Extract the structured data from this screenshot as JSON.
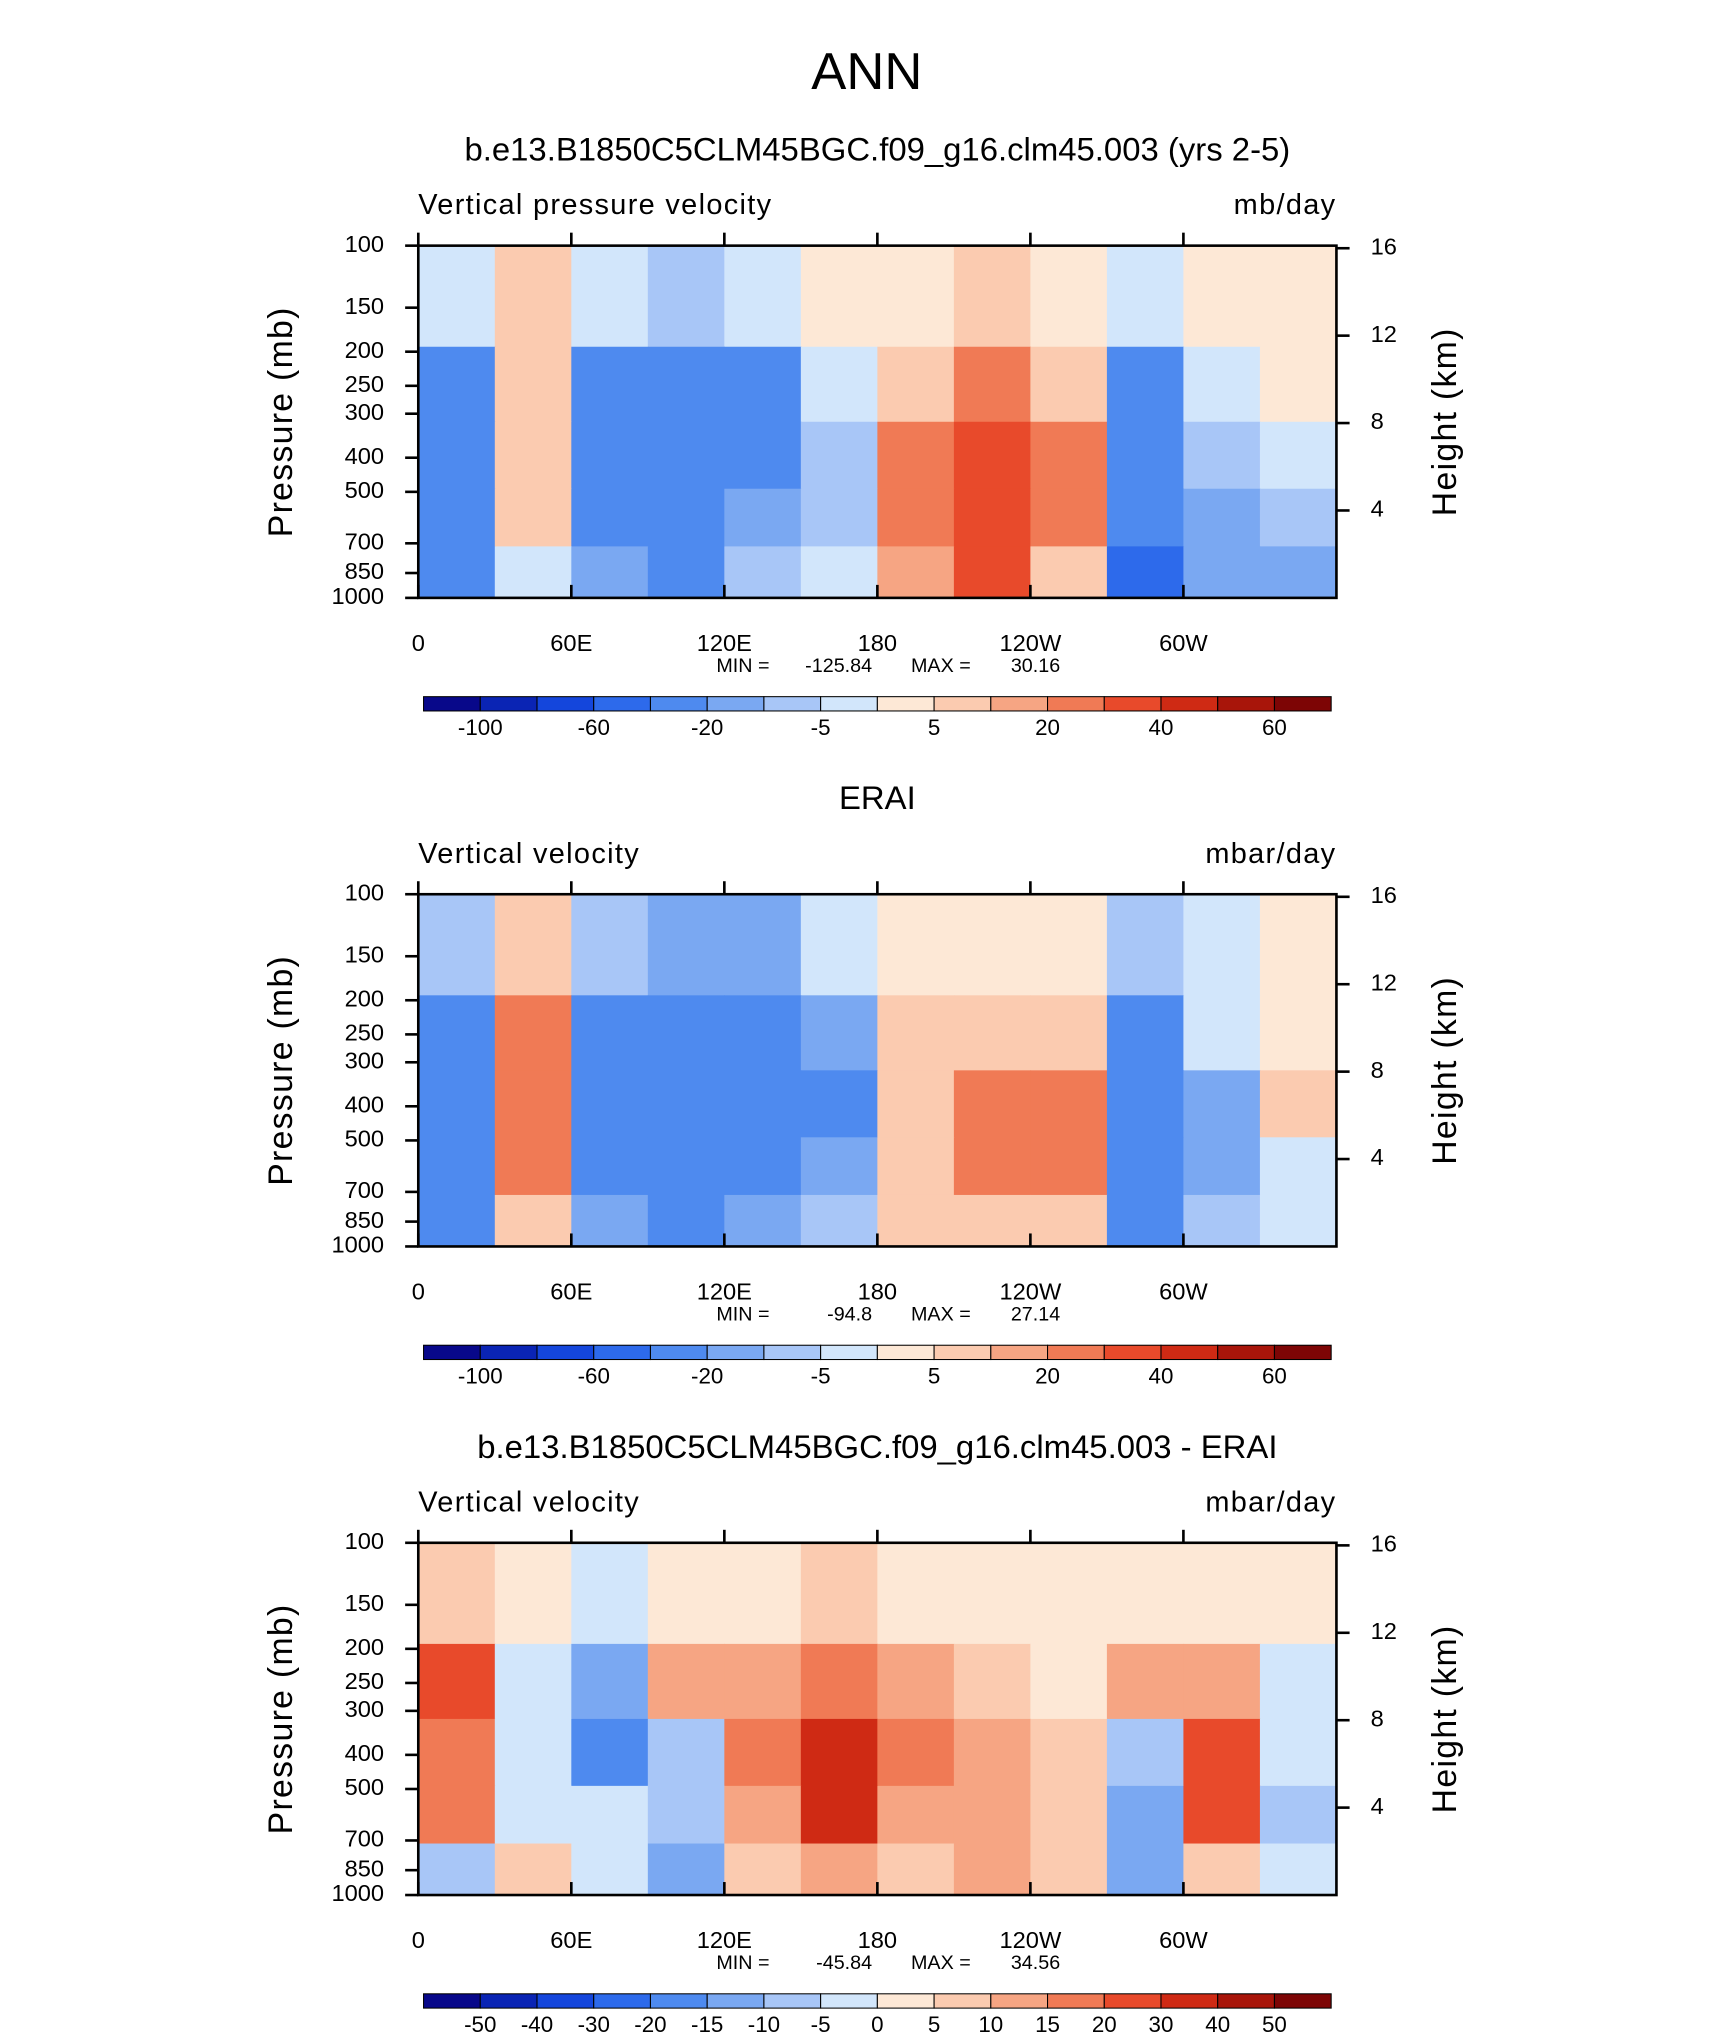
{
  "title": "ANN",
  "chart_data": [
    {
      "type": "contour",
      "title": "b.e13.B1850C5CLM45BGC.f09_g16.clm45.003 (yrs 2-5)",
      "left_label": "Vertical pressure velocity",
      "right_label": "mb/day",
      "ylabel": "Pressure (mb)",
      "y2label": "Height (km)",
      "x": [
        15,
        45,
        75,
        105,
        135,
        165,
        195,
        225,
        255,
        285,
        315,
        345
      ],
      "pressure": [
        150,
        250,
        400,
        600,
        850
      ],
      "values": [
        [
          -5,
          5,
          -5,
          -10,
          -5,
          0,
          3,
          5,
          3,
          -5,
          3,
          3
        ],
        [
          -30,
          10,
          -30,
          -40,
          -30,
          -5,
          10,
          20,
          10,
          -40,
          -5,
          3
        ],
        [
          -40,
          10,
          -40,
          -40,
          -30,
          -10,
          20,
          30,
          20,
          -40,
          -10,
          -5
        ],
        [
          -40,
          5,
          -40,
          -40,
          -20,
          -10,
          20,
          30,
          20,
          -40,
          -15,
          -10
        ],
        [
          -40,
          -5,
          -20,
          -30,
          -10,
          -5,
          15,
          30,
          10,
          -60,
          -20,
          -20
        ]
      ],
      "xlim": [
        0,
        360
      ],
      "xticks": [
        0,
        {
          "value": 60,
          "label": "60E"
        },
        {
          "value": 120,
          "label": "120E"
        },
        180,
        {
          "value": 240,
          "label": "120W"
        },
        {
          "value": 300,
          "label": "60W"
        }
      ],
      "ylim": [
        1000,
        100
      ],
      "yticks": [
        100,
        150,
        200,
        250,
        300,
        400,
        500,
        700,
        850,
        1000
      ],
      "y2ticks": [
        4,
        8,
        12,
        16
      ],
      "min_label": "MIN =",
      "min": -125.84,
      "max_label": "MAX =",
      "max": 30.16,
      "colorbar": {
        "colors": [
          "#08088a",
          "#0a24b4",
          "#1446dc",
          "#2d6aeb",
          "#4e8aef",
          "#7aa8f2",
          "#a8c6f7",
          "#d2e6fb",
          "#fde8d6",
          "#fbcbb0",
          "#f6a583",
          "#f07a55",
          "#e84a2b",
          "#cf2a14",
          "#a8150a",
          "#7d0505"
        ],
        "labels": [
          -100,
          -60,
          -20,
          -5,
          5,
          20,
          40,
          60
        ]
      }
    },
    {
      "type": "contour",
      "title": "ERAI",
      "left_label": "Vertical velocity",
      "right_label": "mbar/day",
      "ylabel": "Pressure (mb)",
      "y2label": "Height (km)",
      "x": [
        15,
        45,
        75,
        105,
        135,
        165,
        195,
        225,
        255,
        285,
        315,
        345
      ],
      "pressure": [
        150,
        250,
        400,
        600,
        850
      ],
      "values": [
        [
          -10,
          5,
          -10,
          -20,
          -20,
          -5,
          3,
          3,
          3,
          -10,
          -3,
          3
        ],
        [
          -40,
          20,
          -30,
          -40,
          -40,
          -20,
          5,
          10,
          10,
          -40,
          -5,
          3
        ],
        [
          -40,
          20,
          -40,
          -40,
          -40,
          -30,
          10,
          20,
          20,
          -40,
          -20,
          10
        ],
        [
          -40,
          20,
          -40,
          -40,
          -40,
          -20,
          10,
          20,
          20,
          -40,
          -20,
          -5
        ],
        [
          -30,
          10,
          -20,
          -30,
          -20,
          -10,
          5,
          10,
          10,
          -40,
          -10,
          -5
        ]
      ],
      "xlim": [
        0,
        360
      ],
      "xticks": [
        0,
        {
          "value": 60,
          "label": "60E"
        },
        {
          "value": 120,
          "label": "120E"
        },
        180,
        {
          "value": 240,
          "label": "120W"
        },
        {
          "value": 300,
          "label": "60W"
        }
      ],
      "ylim": [
        1000,
        100
      ],
      "yticks": [
        100,
        150,
        200,
        250,
        300,
        400,
        500,
        700,
        850,
        1000
      ],
      "y2ticks": [
        4,
        8,
        12,
        16
      ],
      "min_label": "MIN =",
      "min": -94.8,
      "max_label": "MAX =",
      "max": 27.14,
      "colorbar": {
        "colors": [
          "#08088a",
          "#0a24b4",
          "#1446dc",
          "#2d6aeb",
          "#4e8aef",
          "#7aa8f2",
          "#a8c6f7",
          "#d2e6fb",
          "#fde8d6",
          "#fbcbb0",
          "#f6a583",
          "#f07a55",
          "#e84a2b",
          "#cf2a14",
          "#a8150a",
          "#7d0505"
        ],
        "labels": [
          -100,
          -60,
          -20,
          -5,
          5,
          20,
          40,
          60
        ]
      }
    },
    {
      "type": "contour",
      "title": "b.e13.B1850C5CLM45BGC.f09_g16.clm45.003 - ERAI",
      "left_label": "Vertical velocity",
      "right_label": "mbar/day",
      "ylabel": "Pressure (mb)",
      "y2label": "Height (km)",
      "x": [
        15,
        45,
        75,
        105,
        135,
        165,
        195,
        225,
        255,
        285,
        315,
        345
      ],
      "pressure": [
        150,
        250,
        400,
        600,
        850
      ],
      "values": [
        [
          5,
          0,
          -5,
          0,
          3,
          5,
          3,
          0,
          0,
          3,
          3,
          0
        ],
        [
          20,
          -5,
          -15,
          10,
          10,
          15,
          10,
          5,
          3,
          10,
          10,
          -3
        ],
        [
          15,
          -3,
          -20,
          -10,
          15,
          30,
          15,
          10,
          5,
          -10,
          20,
          -5
        ],
        [
          15,
          -5,
          -5,
          -10,
          10,
          30,
          10,
          10,
          5,
          -15,
          20,
          -10
        ],
        [
          -10,
          5,
          -5,
          -15,
          5,
          10,
          5,
          10,
          5,
          -15,
          5,
          -5
        ]
      ],
      "xlim": [
        0,
        360
      ],
      "xticks": [
        0,
        {
          "value": 60,
          "label": "60E"
        },
        {
          "value": 120,
          "label": "120E"
        },
        180,
        {
          "value": 240,
          "label": "120W"
        },
        {
          "value": 300,
          "label": "60W"
        }
      ],
      "ylim": [
        1000,
        100
      ],
      "yticks": [
        100,
        150,
        200,
        250,
        300,
        400,
        500,
        700,
        850,
        1000
      ],
      "y2ticks": [
        4,
        8,
        12,
        16
      ],
      "min_label": "MIN =",
      "min": -45.84,
      "max_label": "MAX =",
      "max": 34.56,
      "colorbar": {
        "colors": [
          "#08088a",
          "#0a24b4",
          "#1446dc",
          "#2d6aeb",
          "#4e8aef",
          "#7aa8f2",
          "#a8c6f7",
          "#d2e6fb",
          "#fde8d6",
          "#fbcbb0",
          "#f6a583",
          "#f07a55",
          "#e84a2b",
          "#cf2a14",
          "#a8150a",
          "#7d0505"
        ],
        "labels": [
          -50,
          -40,
          -30,
          -20,
          -15,
          -10,
          -5,
          0,
          5,
          10,
          15,
          20,
          30,
          40,
          50
        ]
      }
    }
  ]
}
